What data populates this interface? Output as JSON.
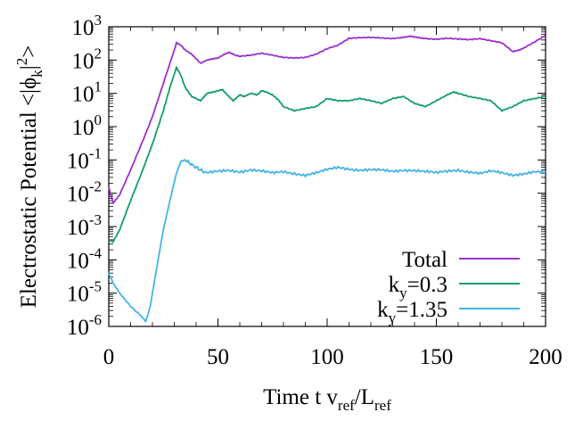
{
  "chart_data": {
    "type": "line",
    "title": "",
    "xlabel": {
      "main": "Time t v",
      "sub1": "ref",
      "mid": "/L",
      "sub2": "ref"
    },
    "ylabel": {
      "prefix": "Electrostatic Potential <|ϕ",
      "sub": "k",
      "mid": "|",
      "sup": "2",
      "suffix": ">"
    },
    "xlim": [
      0,
      200
    ],
    "ylim_log10": [
      -6,
      3
    ],
    "yscale": "log",
    "x_ticks": [
      "0",
      "50",
      "100",
      "150",
      "200"
    ],
    "y_ticks": [
      {
        "base": "10",
        "exp": "-6"
      },
      {
        "base": "10",
        "exp": "-5"
      },
      {
        "base": "10",
        "exp": "-4"
      },
      {
        "base": "10",
        "exp": "-3"
      },
      {
        "base": "10",
        "exp": "-2"
      },
      {
        "base": "10",
        "exp": "-1"
      },
      {
        "base": "10",
        "exp": "0"
      },
      {
        "base": "10",
        "exp": "1"
      },
      {
        "base": "10",
        "exp": "2"
      },
      {
        "base": "10",
        "exp": "3"
      }
    ],
    "legend_position": "bottom-right",
    "series": [
      {
        "name": "Total",
        "label": {
          "main": "Total",
          "sub": "",
          "rest": ""
        },
        "color": "#9b30d0",
        "points": [
          [
            0,
            0.015
          ],
          [
            2,
            0.005
          ],
          [
            5,
            0.009
          ],
          [
            10,
            0.05
          ],
          [
            15,
            0.3
          ],
          [
            20,
            2.0
          ],
          [
            25,
            20
          ],
          [
            30,
            200
          ],
          [
            31,
            330
          ],
          [
            33,
            280
          ],
          [
            35,
            200
          ],
          [
            38,
            150
          ],
          [
            40,
            110
          ],
          [
            42,
            80
          ],
          [
            45,
            100
          ],
          [
            48,
            110
          ],
          [
            50,
            115
          ],
          [
            53,
            150
          ],
          [
            55,
            170
          ],
          [
            58,
            140
          ],
          [
            60,
            130
          ],
          [
            65,
            140
          ],
          [
            70,
            160
          ],
          [
            75,
            140
          ],
          [
            80,
            120
          ],
          [
            85,
            115
          ],
          [
            90,
            120
          ],
          [
            95,
            150
          ],
          [
            100,
            220
          ],
          [
            105,
            280
          ],
          [
            110,
            450
          ],
          [
            115,
            470
          ],
          [
            120,
            480
          ],
          [
            125,
            460
          ],
          [
            130,
            440
          ],
          [
            135,
            480
          ],
          [
            138,
            520
          ],
          [
            142,
            470
          ],
          [
            145,
            440
          ],
          [
            150,
            420
          ],
          [
            155,
            450
          ],
          [
            160,
            430
          ],
          [
            165,
            410
          ],
          [
            170,
            440
          ],
          [
            175,
            380
          ],
          [
            180,
            330
          ],
          [
            185,
            180
          ],
          [
            188,
            200
          ],
          [
            190,
            230
          ],
          [
            195,
            350
          ],
          [
            200,
            550
          ]
        ]
      },
      {
        "name": "ky=0.3",
        "label": {
          "main": "k",
          "sub": "y",
          "rest": "=0.3"
        },
        "color": "#119c6f",
        "points": [
          [
            0,
            0.0004
          ],
          [
            2,
            0.00035
          ],
          [
            5,
            0.0008
          ],
          [
            10,
            0.006
          ],
          [
            15,
            0.04
          ],
          [
            20,
            0.3
          ],
          [
            25,
            3
          ],
          [
            28,
            15
          ],
          [
            31,
            60
          ],
          [
            33,
            35
          ],
          [
            35,
            15
          ],
          [
            38,
            8
          ],
          [
            40,
            7
          ],
          [
            42,
            6
          ],
          [
            45,
            10
          ],
          [
            48,
            11
          ],
          [
            50,
            12
          ],
          [
            52,
            13
          ],
          [
            55,
            8
          ],
          [
            57,
            6
          ],
          [
            60,
            9
          ],
          [
            62,
            8
          ],
          [
            65,
            10
          ],
          [
            68,
            9
          ],
          [
            70,
            12
          ],
          [
            72,
            11
          ],
          [
            75,
            9
          ],
          [
            78,
            6
          ],
          [
            80,
            4
          ],
          [
            85,
            3
          ],
          [
            90,
            3.5
          ],
          [
            95,
            4
          ],
          [
            100,
            7
          ],
          [
            105,
            6
          ],
          [
            110,
            6
          ],
          [
            115,
            7
          ],
          [
            120,
            6
          ],
          [
            125,
            5
          ],
          [
            130,
            7
          ],
          [
            135,
            8
          ],
          [
            140,
            5
          ],
          [
            145,
            4
          ],
          [
            150,
            6
          ],
          [
            155,
            9
          ],
          [
            158,
            11
          ],
          [
            160,
            10
          ],
          [
            165,
            8
          ],
          [
            170,
            7
          ],
          [
            175,
            6
          ],
          [
            180,
            3
          ],
          [
            185,
            4
          ],
          [
            190,
            6
          ],
          [
            195,
            7
          ],
          [
            200,
            8
          ]
        ]
      },
      {
        "name": "ky=1.35",
        "label": {
          "main": "k",
          "sub": "y",
          "rest": "=1.35"
        },
        "color": "#45b4e5",
        "points": [
          [
            0,
            4e-05
          ],
          [
            2,
            2e-05
          ],
          [
            5,
            1e-05
          ],
          [
            10,
            4e-06
          ],
          [
            15,
            2e-06
          ],
          [
            17,
            1.4e-06
          ],
          [
            19,
            4e-06
          ],
          [
            22,
            6e-05
          ],
          [
            25,
            0.0008
          ],
          [
            28,
            0.006
          ],
          [
            31,
            0.04
          ],
          [
            33,
            0.09
          ],
          [
            35,
            0.1
          ],
          [
            37,
            0.08
          ],
          [
            40,
            0.06
          ],
          [
            42,
            0.05
          ],
          [
            45,
            0.04
          ],
          [
            50,
            0.045
          ],
          [
            55,
            0.05
          ],
          [
            60,
            0.045
          ],
          [
            65,
            0.05
          ],
          [
            70,
            0.045
          ],
          [
            75,
            0.04
          ],
          [
            80,
            0.045
          ],
          [
            85,
            0.04
          ],
          [
            90,
            0.035
          ],
          [
            95,
            0.04
          ],
          [
            100,
            0.05
          ],
          [
            105,
            0.06
          ],
          [
            110,
            0.055
          ],
          [
            115,
            0.05
          ],
          [
            120,
            0.05
          ],
          [
            125,
            0.048
          ],
          [
            130,
            0.045
          ],
          [
            135,
            0.05
          ],
          [
            140,
            0.05
          ],
          [
            145,
            0.045
          ],
          [
            150,
            0.04
          ],
          [
            155,
            0.045
          ],
          [
            160,
            0.05
          ],
          [
            165,
            0.045
          ],
          [
            170,
            0.04
          ],
          [
            175,
            0.045
          ],
          [
            180,
            0.04
          ],
          [
            185,
            0.035
          ],
          [
            190,
            0.04
          ],
          [
            195,
            0.045
          ],
          [
            200,
            0.042
          ]
        ]
      }
    ]
  }
}
